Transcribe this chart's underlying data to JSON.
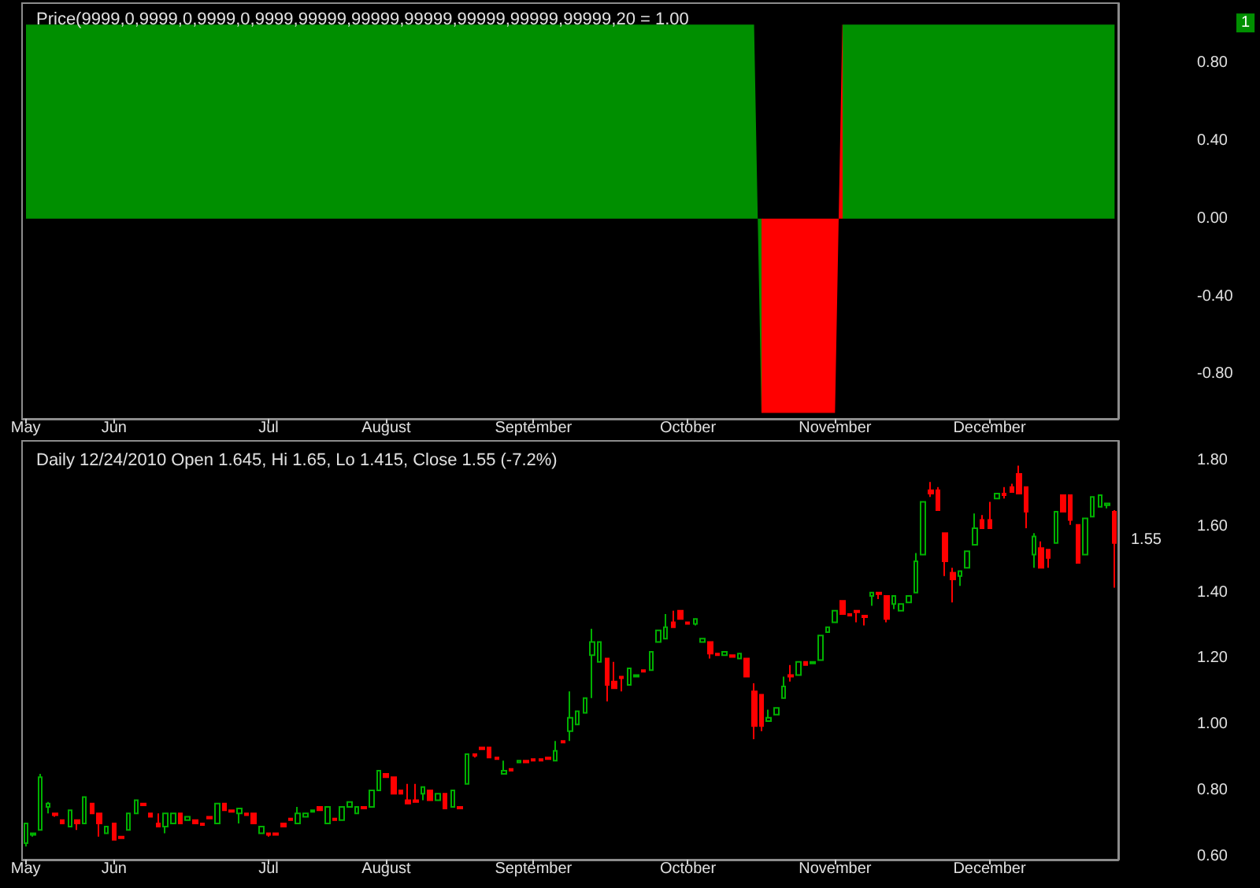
{
  "chart_data": [
    {
      "type": "area",
      "title": "Price(9999,0,9999,0,9999,0,9999,99999,99999,99999,99999,99999,99999,20 = 1.00",
      "categories": [
        "May",
        null,
        null,
        null,
        null,
        null,
        null,
        null,
        null,
        null,
        null,
        null,
        "Jun",
        null,
        null,
        null,
        null,
        null,
        null,
        null,
        null,
        null,
        null,
        null,
        null,
        null,
        null,
        null,
        null,
        null,
        null,
        null,
        null,
        "Jul",
        null,
        null,
        null,
        null,
        null,
        null,
        null,
        null,
        null,
        null,
        null,
        null,
        null,
        null,
        null,
        "August",
        null,
        null,
        null,
        null,
        null,
        null,
        null,
        null,
        null,
        null,
        null,
        null,
        null,
        null,
        null,
        null,
        null,
        null,
        null,
        "September",
        null,
        null,
        null,
        null,
        null,
        null,
        null,
        null,
        null,
        null,
        null,
        null,
        null,
        null,
        null,
        null,
        null,
        null,
        null,
        null,
        "October",
        null,
        null,
        null,
        null,
        null,
        null,
        null,
        null,
        null,
        null,
        null,
        null,
        null,
        null,
        null,
        null,
        null,
        null,
        null,
        "November",
        null,
        null,
        null,
        null,
        null,
        null,
        null,
        null,
        null,
        null,
        null,
        null,
        null,
        null,
        null,
        null,
        null,
        null,
        null,
        null,
        "December",
        null,
        null,
        null,
        null,
        null,
        null,
        null,
        null,
        null,
        null,
        null,
        null,
        null,
        null,
        null,
        null,
        null
      ],
      "values": [
        1,
        1,
        1,
        1,
        1,
        1,
        1,
        1,
        1,
        1,
        1,
        1,
        1,
        1,
        1,
        1,
        1,
        1,
        1,
        1,
        1,
        1,
        1,
        1,
        1,
        1,
        1,
        1,
        1,
        1,
        1,
        1,
        1,
        1,
        1,
        1,
        1,
        1,
        1,
        1,
        1,
        1,
        1,
        1,
        1,
        1,
        1,
        1,
        1,
        1,
        1,
        1,
        1,
        1,
        1,
        1,
        1,
        1,
        1,
        1,
        1,
        1,
        1,
        1,
        1,
        1,
        1,
        1,
        1,
        1,
        1,
        1,
        1,
        1,
        1,
        1,
        1,
        1,
        1,
        1,
        1,
        1,
        1,
        1,
        1,
        1,
        1,
        1,
        1,
        1,
        1,
        1,
        1,
        1,
        1,
        1,
        1,
        1,
        1,
        1,
        -1,
        -1,
        -1,
        -1,
        -1,
        -1,
        -1,
        -1,
        -1,
        -1,
        -1,
        1,
        1,
        1,
        1,
        1,
        1,
        1,
        1,
        1,
        1,
        1,
        1,
        1,
        1,
        1,
        1,
        1,
        1,
        1,
        1,
        1,
        1,
        1,
        1,
        1,
        1,
        1,
        1,
        1,
        1,
        1,
        1,
        1,
        1,
        1,
        1,
        1,
        1
      ],
      "colors": [
        "#008f00",
        "#008f00",
        "#008f00",
        "#008f00",
        "#008f00",
        "#008f00",
        "#008f00",
        "#008f00",
        "#008f00",
        "#008f00",
        "#008f00",
        "#008f00",
        "#008f00",
        "#008f00",
        "#008f00",
        "#008f00",
        "#008f00",
        "#008f00",
        "#008f00",
        "#008f00",
        "#008f00",
        "#008f00",
        "#008f00",
        "#008f00",
        "#008f00",
        "#008f00",
        "#008f00",
        "#008f00",
        "#008f00",
        "#008f00",
        "#008f00",
        "#008f00",
        "#008f00",
        "#008f00",
        "#008f00",
        "#008f00",
        "#008f00",
        "#008f00",
        "#008f00",
        "#008f00",
        "#008f00",
        "#008f00",
        "#008f00",
        "#008f00",
        "#008f00",
        "#008f00",
        "#008f00",
        "#008f00",
        "#008f00",
        "#008f00",
        "#008f00",
        "#008f00",
        "#008f00",
        "#008f00",
        "#008f00",
        "#008f00",
        "#008f00",
        "#008f00",
        "#008f00",
        "#008f00",
        "#008f00",
        "#008f00",
        "#008f00",
        "#008f00",
        "#008f00",
        "#008f00",
        "#008f00",
        "#008f00",
        "#008f00",
        "#008f00",
        "#008f00",
        "#008f00",
        "#008f00",
        "#008f00",
        "#008f00",
        "#008f00",
        "#008f00",
        "#008f00",
        "#008f00",
        "#008f00",
        "#008f00",
        "#008f00",
        "#008f00",
        "#008f00",
        "#008f00",
        "#008f00",
        "#008f00",
        "#008f00",
        "#008f00",
        "#008f00",
        "#008f00",
        "#008f00",
        "#008f00",
        "#008f00",
        "#008f00",
        "#008f00",
        "#008f00",
        "#008f00",
        "#008f00",
        "#008f00",
        "#ff0000",
        "#ff0000",
        "#ff0000",
        "#ff0000",
        "#ff0000",
        "#ff0000",
        "#ff0000",
        "#ff0000",
        "#ff0000",
        "#ff0000",
        "#ff0000",
        "#008f00",
        "#008f00",
        "#008f00",
        "#008f00",
        "#008f00",
        "#008f00",
        "#008f00",
        "#008f00",
        "#008f00",
        "#008f00",
        "#008f00",
        "#008f00",
        "#008f00",
        "#008f00",
        "#008f00",
        "#008f00",
        "#008f00",
        "#008f00",
        "#008f00",
        "#008f00",
        "#008f00",
        "#008f00",
        "#008f00",
        "#008f00",
        "#008f00",
        "#008f00",
        "#008f00",
        "#008f00",
        "#008f00",
        "#008f00",
        "#008f00",
        "#008f00",
        "#008f00",
        "#008f00",
        "#008f00",
        "#008f00",
        "#008f00",
        "#008f00"
      ],
      "ylim": [
        -1.03,
        1.11
      ],
      "yticks": [
        {
          "value": 0.8,
          "label": "0.80"
        },
        {
          "value": 0.4,
          "label": "0.40"
        },
        {
          "value": 0,
          "label": "0.00"
        },
        {
          "value": -0.4,
          "label": "-0.40"
        },
        {
          "value": -0.8,
          "label": "-0.80"
        }
      ],
      "annotations": [
        "1"
      ],
      "grid": false
    },
    {
      "type": "candlestick",
      "title": "Daily 12/24/2010 Open 1.645, Hi 1.65, Lo 1.415, Close 1.55 (-7.2%)",
      "categories": [
        "May",
        null,
        null,
        null,
        null,
        null,
        null,
        null,
        null,
        null,
        null,
        null,
        "Jun",
        null,
        null,
        null,
        null,
        null,
        null,
        null,
        null,
        null,
        null,
        null,
        null,
        null,
        null,
        null,
        null,
        null,
        null,
        null,
        null,
        "Jul",
        null,
        null,
        null,
        null,
        null,
        null,
        null,
        null,
        null,
        null,
        null,
        null,
        null,
        null,
        null,
        "August",
        null,
        null,
        null,
        null,
        null,
        null,
        null,
        null,
        null,
        null,
        null,
        null,
        null,
        null,
        null,
        null,
        null,
        null,
        null,
        "September",
        null,
        null,
        null,
        null,
        null,
        null,
        null,
        null,
        null,
        null,
        null,
        null,
        null,
        null,
        null,
        null,
        null,
        null,
        null,
        null,
        "October",
        null,
        null,
        null,
        null,
        null,
        null,
        null,
        null,
        null,
        null,
        null,
        null,
        null,
        null,
        null,
        null,
        null,
        null,
        null,
        "November",
        null,
        null,
        null,
        null,
        null,
        null,
        null,
        null,
        null,
        null,
        null,
        null,
        null,
        null,
        null,
        null,
        null,
        null,
        null,
        null,
        "December",
        null,
        null,
        null,
        null,
        null,
        null,
        null,
        null,
        null,
        null,
        null,
        null,
        null,
        null,
        null,
        null,
        null
      ],
      "ohlc": [
        [
          0.64,
          0.7,
          0.63,
          0.7
        ],
        [
          0.665,
          0.67,
          0.66,
          0.67
        ],
        [
          0.68,
          0.85,
          0.68,
          0.84
        ],
        [
          0.75,
          0.765,
          0.73,
          0.76
        ],
        [
          0.73,
          0.73,
          0.72,
          0.725
        ],
        [
          0.71,
          0.71,
          0.7,
          0.7
        ],
        [
          0.69,
          0.74,
          0.69,
          0.74
        ],
        [
          0.71,
          0.71,
          0.68,
          0.7
        ],
        [
          0.7,
          0.78,
          0.7,
          0.78
        ],
        [
          0.76,
          0.76,
          0.73,
          0.73
        ],
        [
          0.73,
          0.73,
          0.66,
          0.7
        ],
        [
          0.67,
          0.69,
          0.67,
          0.69
        ],
        [
          0.7,
          0.7,
          0.65,
          0.65
        ],
        [
          0.66,
          0.66,
          0.655,
          0.655
        ],
        [
          0.68,
          0.73,
          0.68,
          0.73
        ],
        [
          0.73,
          0.77,
          0.73,
          0.77
        ],
        [
          0.76,
          0.76,
          0.755,
          0.755
        ],
        [
          0.73,
          0.73,
          0.72,
          0.72
        ],
        [
          0.7,
          0.73,
          0.69,
          0.69
        ],
        [
          0.69,
          0.73,
          0.67,
          0.73
        ],
        [
          0.7,
          0.73,
          0.7,
          0.73
        ],
        [
          0.73,
          0.73,
          0.7,
          0.7
        ],
        [
          0.71,
          0.72,
          0.71,
          0.72
        ],
        [
          0.71,
          0.71,
          0.7,
          0.7
        ],
        [
          0.7,
          0.7,
          0.695,
          0.695
        ],
        [
          0.72,
          0.72,
          0.715,
          0.715
        ],
        [
          0.7,
          0.76,
          0.7,
          0.76
        ],
        [
          0.76,
          0.76,
          0.74,
          0.74
        ],
        [
          0.74,
          0.74,
          0.735,
          0.735
        ],
        [
          0.73,
          0.745,
          0.7,
          0.745
        ],
        [
          0.73,
          0.73,
          0.725,
          0.725
        ],
        [
          0.73,
          0.73,
          0.7,
          0.7
        ],
        [
          0.67,
          0.69,
          0.67,
          0.69
        ],
        [
          0.67,
          0.67,
          0.66,
          0.665
        ],
        [
          0.67,
          0.67,
          0.665,
          0.665
        ],
        [
          0.7,
          0.7,
          0.69,
          0.69
        ],
        [
          0.715,
          0.715,
          0.71,
          0.71
        ],
        [
          0.7,
          0.75,
          0.7,
          0.73
        ],
        [
          0.72,
          0.73,
          0.72,
          0.73
        ],
        [
          0.735,
          0.74,
          0.735,
          0.74
        ],
        [
          0.75,
          0.75,
          0.74,
          0.74
        ],
        [
          0.7,
          0.75,
          0.7,
          0.75
        ],
        [
          0.715,
          0.715,
          0.71,
          0.71
        ],
        [
          0.71,
          0.75,
          0.71,
          0.75
        ],
        [
          0.75,
          0.765,
          0.75,
          0.765
        ],
        [
          0.73,
          0.75,
          0.73,
          0.75
        ],
        [
          0.75,
          0.75,
          0.745,
          0.745
        ],
        [
          0.75,
          0.8,
          0.75,
          0.8
        ],
        [
          0.8,
          0.86,
          0.8,
          0.86
        ],
        [
          0.85,
          0.85,
          0.84,
          0.84
        ],
        [
          0.84,
          0.84,
          0.79,
          0.79
        ],
        [
          0.8,
          0.8,
          0.79,
          0.79
        ],
        [
          0.77,
          0.82,
          0.76,
          0.76
        ],
        [
          0.77,
          0.82,
          0.765,
          0.765
        ],
        [
          0.79,
          0.81,
          0.77,
          0.81
        ],
        [
          0.8,
          0.8,
          0.77,
          0.77
        ],
        [
          0.77,
          0.79,
          0.77,
          0.79
        ],
        [
          0.79,
          0.79,
          0.745,
          0.745
        ],
        [
          0.75,
          0.8,
          0.75,
          0.8
        ],
        [
          0.75,
          0.75,
          0.745,
          0.745
        ],
        [
          0.82,
          0.91,
          0.82,
          0.91
        ],
        [
          0.91,
          0.91,
          0.9,
          0.905
        ],
        [
          0.93,
          0.93,
          0.925,
          0.925
        ],
        [
          0.93,
          0.93,
          0.9,
          0.9
        ],
        [
          0.9,
          0.9,
          0.895,
          0.895
        ],
        [
          0.85,
          0.89,
          0.85,
          0.86
        ],
        [
          0.865,
          0.865,
          0.86,
          0.86
        ],
        [
          0.885,
          0.89,
          0.885,
          0.89
        ],
        [
          0.89,
          0.89,
          0.885,
          0.885
        ],
        [
          0.895,
          0.895,
          0.89,
          0.89
        ],
        [
          0.895,
          0.895,
          0.89,
          0.89
        ],
        [
          0.9,
          0.9,
          0.895,
          0.895
        ],
        [
          0.89,
          0.95,
          0.89,
          0.92
        ],
        [
          0.95,
          0.95,
          0.945,
          0.945
        ],
        [
          0.98,
          1.1,
          0.95,
          1.02
        ],
        [
          1.0,
          1.04,
          1.0,
          1.04
        ],
        [
          1.035,
          1.08,
          1.035,
          1.08
        ],
        [
          1.21,
          1.29,
          1.08,
          1.25
        ],
        [
          1.19,
          1.25,
          1.19,
          1.25
        ],
        [
          1.2,
          1.2,
          1.07,
          1.12
        ],
        [
          1.13,
          1.19,
          1.11,
          1.11
        ],
        [
          1.145,
          1.145,
          1.1,
          1.14
        ],
        [
          1.12,
          1.17,
          1.12,
          1.17
        ],
        [
          1.145,
          1.15,
          1.145,
          1.15
        ],
        [
          1.165,
          1.165,
          1.16,
          1.16
        ],
        [
          1.165,
          1.22,
          1.165,
          1.22
        ],
        [
          1.25,
          1.285,
          1.25,
          1.285
        ],
        [
          1.26,
          1.335,
          1.26,
          1.295
        ],
        [
          1.31,
          1.345,
          1.295,
          1.295
        ],
        [
          1.345,
          1.345,
          1.32,
          1.32
        ],
        [
          1.31,
          1.31,
          1.305,
          1.305
        ],
        [
          1.305,
          1.32,
          1.3,
          1.32
        ],
        [
          1.25,
          1.26,
          1.25,
          1.26
        ],
        [
          1.25,
          1.25,
          1.2,
          1.215
        ],
        [
          1.215,
          1.215,
          1.21,
          1.21
        ],
        [
          1.21,
          1.22,
          1.21,
          1.22
        ],
        [
          1.21,
          1.21,
          1.205,
          1.205
        ],
        [
          1.2,
          1.215,
          1.2,
          1.215
        ],
        [
          1.2,
          1.2,
          1.145,
          1.145
        ],
        [
          1.1,
          1.125,
          0.955,
          0.995
        ],
        [
          1.09,
          1.09,
          0.98,
          0.995
        ],
        [
          1.01,
          1.045,
          1.01,
          1.02
        ],
        [
          1.03,
          1.05,
          1.03,
          1.05
        ],
        [
          1.08,
          1.145,
          1.08,
          1.115
        ],
        [
          1.15,
          1.18,
          1.13,
          1.145
        ],
        [
          1.15,
          1.19,
          1.15,
          1.19
        ],
        [
          1.19,
          1.19,
          1.18,
          1.18
        ],
        [
          1.185,
          1.19,
          1.185,
          1.19
        ],
        [
          1.195,
          1.27,
          1.195,
          1.27
        ],
        [
          1.28,
          1.295,
          1.28,
          1.295
        ],
        [
          1.31,
          1.345,
          1.31,
          1.345
        ],
        [
          1.375,
          1.375,
          1.335,
          1.335
        ],
        [
          1.335,
          1.335,
          1.33,
          1.33
        ],
        [
          1.345,
          1.345,
          1.31,
          1.34
        ],
        [
          1.33,
          1.33,
          1.3,
          1.325
        ],
        [
          1.39,
          1.4,
          1.36,
          1.4
        ],
        [
          1.4,
          1.4,
          1.38,
          1.395
        ],
        [
          1.39,
          1.39,
          1.31,
          1.32
        ],
        [
          1.365,
          1.39,
          1.35,
          1.39
        ],
        [
          1.345,
          1.365,
          1.345,
          1.365
        ],
        [
          1.37,
          1.39,
          1.37,
          1.39
        ],
        [
          1.4,
          1.52,
          1.4,
          1.495
        ],
        [
          1.515,
          1.675,
          1.515,
          1.675
        ],
        [
          1.71,
          1.735,
          1.69,
          1.7
        ],
        [
          1.71,
          1.72,
          1.65,
          1.65
        ],
        [
          1.58,
          1.58,
          1.45,
          1.495
        ],
        [
          1.46,
          1.475,
          1.37,
          1.44
        ],
        [
          1.45,
          1.465,
          1.42,
          1.465
        ],
        [
          1.475,
          1.525,
          1.475,
          1.525
        ],
        [
          1.545,
          1.64,
          1.545,
          1.595
        ],
        [
          1.62,
          1.635,
          1.595,
          1.595
        ],
        [
          1.62,
          1.675,
          1.595,
          1.595
        ],
        [
          1.685,
          1.7,
          1.685,
          1.7
        ],
        [
          1.7,
          1.72,
          1.685,
          1.695
        ],
        [
          1.72,
          1.73,
          1.705,
          1.705
        ],
        [
          1.76,
          1.785,
          1.7,
          1.7
        ],
        [
          1.72,
          1.72,
          1.595,
          1.645
        ],
        [
          1.515,
          1.58,
          1.475,
          1.57
        ],
        [
          1.535,
          1.555,
          1.475,
          1.475
        ],
        [
          1.53,
          1.53,
          1.475,
          1.505
        ],
        [
          1.55,
          1.645,
          1.55,
          1.645
        ],
        [
          1.695,
          1.695,
          1.645,
          1.645
        ],
        [
          1.695,
          1.695,
          1.605,
          1.62
        ],
        [
          1.605,
          1.605,
          1.49,
          1.49
        ],
        [
          1.515,
          1.625,
          1.515,
          1.625
        ],
        [
          1.63,
          1.69,
          1.63,
          1.69
        ],
        [
          1.66,
          1.695,
          1.66,
          1.695
        ],
        [
          1.665,
          1.67,
          1.655,
          1.67
        ],
        [
          1.645,
          1.65,
          1.415,
          1.55
        ]
      ],
      "ylim": [
        0.59,
        1.86
      ],
      "yticks": [
        {
          "value": 0.6,
          "label": "0.60"
        },
        {
          "value": 0.8,
          "label": "0.80"
        },
        {
          "value": 1,
          "label": "1.00"
        },
        {
          "value": 1.2,
          "label": "1.20"
        },
        {
          "value": 1.4,
          "label": "1.40"
        },
        {
          "value": 1.6,
          "label": "1.60"
        },
        {
          "value": 1.8,
          "label": "1.80"
        }
      ],
      "annotations": [
        "1.55"
      ],
      "grid": false
    }
  ]
}
